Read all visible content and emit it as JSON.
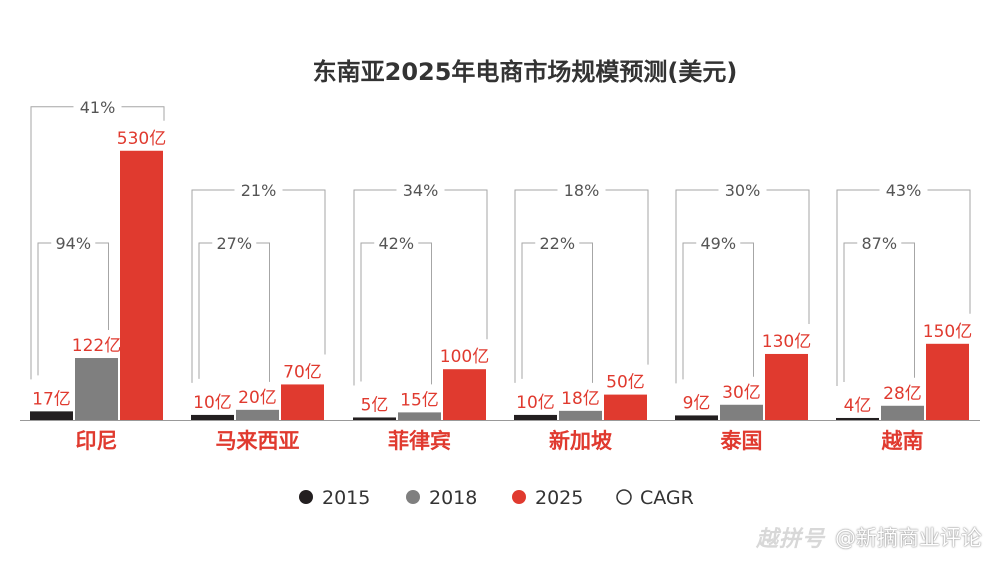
{
  "chart_data": {
    "type": "bar",
    "title": "东南亚2025年电商市场规模预测(美元)",
    "categories": [
      "印尼",
      "马来西亚",
      "菲律宾",
      "新加坡",
      "泰国",
      "越南"
    ],
    "series": [
      {
        "name": "2015",
        "color": "#231f20",
        "values": [
          17,
          10,
          5,
          10,
          9,
          4
        ],
        "labels": [
          "17亿",
          "10亿",
          "5亿",
          "10亿",
          "9亿",
          "4亿"
        ]
      },
      {
        "name": "2018",
        "color": "#7f7f7f",
        "values": [
          122,
          20,
          15,
          18,
          30,
          28
        ],
        "labels": [
          "122亿",
          "20亿",
          "15亿",
          "18亿",
          "30亿",
          "28亿"
        ]
      },
      {
        "name": "2025",
        "color": "#e03a2f",
        "values": [
          530,
          70,
          100,
          50,
          130,
          150
        ],
        "labels": [
          "530亿",
          "70亿",
          "100亿",
          "50亿",
          "130亿",
          "150亿"
        ]
      }
    ],
    "cagr": {
      "name": "CAGR",
      "outer": [
        "41%",
        "21%",
        "34%",
        "18%",
        "30%",
        "43%"
      ],
      "inner": [
        "94%",
        "27%",
        "42%",
        "22%",
        "49%",
        "87%"
      ]
    },
    "legend_position": "bottom",
    "grid": false,
    "colors": {
      "label_red": "#e03a2f",
      "bracket": "#a6a6a6",
      "axis": "#999999"
    }
  },
  "watermark": {
    "logo": "越拼号",
    "text": "@新摘商业评论"
  }
}
